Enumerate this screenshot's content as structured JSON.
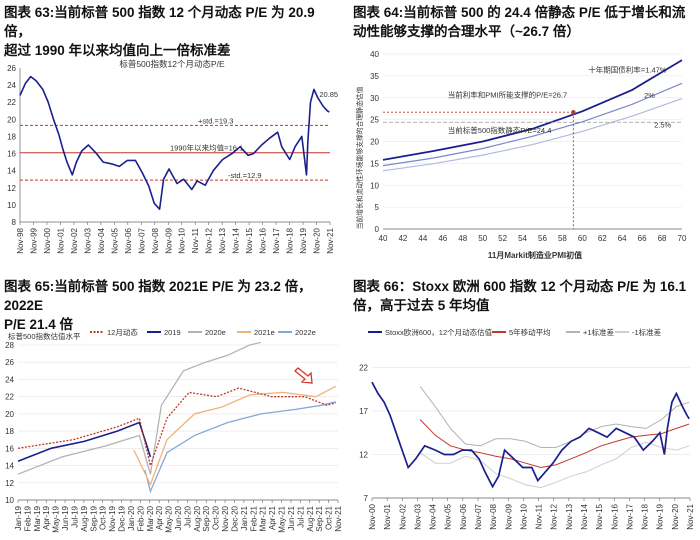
{
  "charts": [
    {
      "caption_line1": "图表 63:当前标普 500 指数 12 个月动态 P/E 为 20.9 倍，",
      "caption_line2": "超过 1990 年以来均值向上一倍标准差",
      "chart_data": {
        "type": "line",
        "title": "标普500指数12个月动态P/E",
        "ylim": [
          8,
          26
        ],
        "yticks": [
          8,
          10,
          12,
          14,
          16,
          18,
          20,
          22,
          24,
          26
        ],
        "xticks": [
          "Nov-98",
          "Nov-99",
          "Nov-00",
          "Nov-01",
          "Nov-02",
          "Nov-03",
          "Nov-04",
          "Nov-05",
          "Nov-06",
          "Nov-07",
          "Nov-08",
          "Nov-09",
          "Nov-10",
          "Nov-11",
          "Nov-12",
          "Nov-13",
          "Nov-14",
          "Nov-15",
          "Nov-16",
          "Nov-17",
          "Nov-18",
          "Nov-19",
          "Nov-20",
          "Nov-21"
        ],
        "series": [
          {
            "name": "12个月动态P/E",
            "color": "#1a1f8c",
            "x": [
              1998.8,
              1999.2,
              1999.6,
              2000.0,
              2000.5,
              2000.9,
              2001.3,
              2001.7,
              2002.0,
              2002.3,
              2002.7,
              2003.0,
              2003.4,
              2003.9,
              2004.5,
              2005.0,
              2005.6,
              2006.2,
              2006.8,
              2007.4,
              2007.9,
              2008.4,
              2008.8,
              2009.2,
              2009.5,
              2009.9,
              2010.5,
              2011.0,
              2011.6,
              2012.0,
              2012.6,
              2013.2,
              2013.9,
              2014.6,
              2015.2,
              2015.8,
              2016.2,
              2016.8,
              2017.4,
              2018.0,
              2018.3,
              2018.9,
              2019.3,
              2019.8,
              2020.15,
              2020.25,
              2020.45,
              2020.7,
              2021.0,
              2021.4,
              2021.7,
              2021.85
            ],
            "values": [
              22.8,
              24.2,
              25.0,
              24.5,
              23.5,
              22.0,
              20.0,
              18.2,
              16.5,
              15.0,
              13.5,
              15.0,
              16.3,
              17.0,
              16.0,
              15.0,
              14.8,
              14.5,
              15.2,
              15.2,
              13.8,
              12.2,
              10.2,
              9.5,
              13.0,
              14.2,
              12.5,
              13.0,
              11.8,
              12.8,
              12.3,
              14.0,
              15.3,
              16.0,
              16.8,
              15.8,
              16.0,
              17.0,
              17.8,
              18.5,
              16.8,
              15.3,
              16.8,
              18.0,
              13.5,
              17.5,
              22.0,
              23.5,
              22.5,
              21.5,
              21.0,
              20.85
            ]
          }
        ],
        "hlines": [
          {
            "value": 19.3,
            "label": "+std.=19.3",
            "color": "#c0392b",
            "dashed": true
          },
          {
            "value": 16.1,
            "label": "1990年以来均值=16.1",
            "color": "#c0392b",
            "dashed": false
          },
          {
            "value": 12.9,
            "label": "-std.=12.9",
            "color": "#c0392b",
            "dashed": true
          }
        ],
        "annotation": "20.85"
      }
    },
    {
      "caption_line1": "图表 64:当前标普 500 的 24.4 倍静态 P/E 低于增长和流",
      "caption_line2": "动性能够支撑的合理水平（~26.7 倍）",
      "chart_data": {
        "type": "line",
        "xlabel": "11月Markit制造业PMI初值",
        "ylabel": "当前增长和流动性环境能够支撑的合理静态估值",
        "xlim": [
          40,
          70
        ],
        "ylim": [
          0,
          40
        ],
        "xticks": [
          40,
          42,
          44,
          46,
          48,
          50,
          52,
          54,
          56,
          58,
          60,
          62,
          64,
          66,
          68,
          70
        ],
        "yticks": [
          0,
          5,
          10,
          15,
          20,
          25,
          30,
          35,
          40
        ],
        "series": [
          {
            "name": "十年期国债利率=1.47%",
            "color": "#1a1f8c",
            "x": [
              40,
              45,
              50,
              55,
              60,
              65,
              70
            ],
            "values": [
              15.8,
              17.8,
              20.0,
              22.9,
              26.9,
              31.8,
              38.6
            ]
          },
          {
            "name": "2%",
            "color": "#7d87c9",
            "x": [
              40,
              45,
              50,
              55,
              60,
              65,
              70
            ],
            "values": [
              14.5,
              16.2,
              18.4,
              21.2,
              24.5,
              28.5,
              33.3
            ]
          },
          {
            "name": "2.5%",
            "color": "#b2b9df",
            "x": [
              40,
              45,
              50,
              55,
              60,
              65,
              70
            ],
            "values": [
              13.3,
              14.9,
              16.9,
              19.3,
              22.3,
              25.8,
              29.8
            ]
          }
        ],
        "labels": {
          "pmi_line": "当前利率和PMI所能支撑的P/E=26.7",
          "current_line": "当前标普500指数静态P/E=24.4",
          "rate1": "十年期国债利率=1.47%",
          "rate2": "2%",
          "rate3": "2.5%"
        },
        "pmi_x": 59.1,
        "supported_pe": 26.7,
        "current_pe": 24.4
      }
    },
    {
      "caption_line1": "图表 65:当前标普 500 指数 2021E P/E 为  23.2 倍，2022E",
      "caption_line2": "P/E 21.4 倍",
      "chart_data": {
        "type": "line",
        "title": "标普500指数估值水平",
        "ylim": [
          10,
          28
        ],
        "yticks": [
          10,
          12,
          14,
          16,
          18,
          20,
          22,
          24,
          26,
          28
        ],
        "xticks": [
          "Jan-19",
          "Feb-19",
          "Mar-19",
          "Apr-19",
          "May-19",
          "Jun-19",
          "Jul-19",
          "Aug-19",
          "Sep-19",
          "Oct-19",
          "Nov-19",
          "Dec-19",
          "Jan-20",
          "Feb-20",
          "Mar-20",
          "Apr-20",
          "May-20",
          "Jun-20",
          "Jul-20",
          "Aug-20",
          "Sep-20",
          "Oct-20",
          "Nov-20",
          "Dec-20",
          "Jan-21",
          "Feb-21",
          "Mar-21",
          "Apr-21",
          "May-21",
          "Jun-21",
          "Jul-21",
          "Aug-21",
          "Sep-21",
          "Oct-21",
          "Nov-21"
        ],
        "series": [
          {
            "name": "12月动态",
            "color": "#c0392b",
            "dashed": true,
            "x": [
              2019.0,
              2019.5,
              2019.9,
              2020.1,
              2020.2,
              2020.35,
              2020.55,
              2020.8,
              2021.0,
              2021.3,
              2021.6,
              2021.8,
              2021.88
            ],
            "values": [
              16.0,
              17.0,
              18.5,
              19.5,
              14.0,
              19.5,
              22.5,
              22.0,
              23.0,
              22.0,
              22.0,
              21.0,
              21.3
            ]
          },
          {
            "name": "2019",
            "color": "#1a1f8c",
            "x": [
              2019.0,
              2019.3,
              2019.6,
              2019.9,
              2020.1,
              2020.2
            ],
            "values": [
              14.5,
              16.0,
              16.8,
              18.0,
              19.0,
              15.0
            ]
          },
          {
            "name": "2020e",
            "color": "#b3b3b3",
            "x": [
              2019.0,
              2019.4,
              2019.8,
              2020.1,
              2020.2,
              2020.3,
              2020.5,
              2020.7,
              2020.9,
              2021.1,
              2021.2
            ],
            "values": [
              13.0,
              15.0,
              16.3,
              17.5,
              13.0,
              21.0,
              25.0,
              26.0,
              26.8,
              28.0,
              28.3
            ]
          },
          {
            "name": "2021e",
            "color": "#f0b27a",
            "x": [
              2020.05,
              2020.2,
              2020.35,
              2020.6,
              2020.85,
              2021.1,
              2021.4,
              2021.7,
              2021.88
            ],
            "values": [
              15.8,
              11.8,
              17.0,
              20.0,
              20.8,
              22.2,
              22.5,
              22.0,
              23.2
            ]
          },
          {
            "name": "2022e",
            "color": "#85a9d6",
            "x": [
              2020.15,
              2020.2,
              2020.35,
              2020.6,
              2020.9,
              2021.2,
              2021.5,
              2021.75,
              2021.88
            ],
            "values": [
              13.5,
              11.0,
              15.5,
              17.5,
              19.0,
              20.0,
              20.5,
              21.0,
              21.4
            ]
          }
        ]
      }
    },
    {
      "caption_line1": "图表 66：Stoxx 欧洲 600 指数 12 个月动态 P/E 为 16.1",
      "caption_line2": "倍，高于过去 5 年均值",
      "chart_data": {
        "type": "line",
        "ylim": [
          7,
          24
        ],
        "yticks": [
          7,
          12,
          17,
          22
        ],
        "xticks": [
          "Nov-00",
          "Nov-01",
          "Nov-02",
          "Nov-03",
          "Nov-04",
          "Nov-05",
          "Nov-06",
          "Nov-07",
          "Nov-08",
          "Nov-09",
          "Nov-10",
          "Nov-11",
          "Nov-12",
          "Nov-13",
          "Nov-14",
          "Nov-15",
          "Nov-16",
          "Nov-17",
          "Nov-18",
          "Nov-19",
          "Nov-20",
          "Nov-21"
        ],
        "series": [
          {
            "name": "Stoxx欧洲600，12个月动态估值",
            "color": "#1a1f8c",
            "x": [
              2000.8,
              2001.2,
              2001.6,
              2002.0,
              2002.4,
              2002.8,
              2003.2,
              2003.7,
              2004.3,
              2005.0,
              2005.6,
              2006.2,
              2006.8,
              2007.4,
              2007.9,
              2008.3,
              2008.8,
              2009.2,
              2009.6,
              2010.2,
              2010.8,
              2011.4,
              2011.8,
              2012.3,
              2012.8,
              2013.4,
              2014.0,
              2014.6,
              2015.2,
              2015.8,
              2016.4,
              2017.0,
              2017.6,
              2018.2,
              2018.8,
              2019.4,
              2019.9,
              2020.2,
              2020.4,
              2020.7,
              2021.0,
              2021.4,
              2021.7,
              2021.85
            ],
            "values": [
              20.3,
              19.0,
              18.0,
              16.5,
              14.5,
              12.5,
              10.5,
              11.5,
              13.0,
              12.5,
              12.0,
              12.0,
              12.5,
              12.5,
              11.5,
              10.0,
              8.3,
              9.5,
              12.5,
              11.5,
              10.5,
              10.5,
              9.0,
              10.0,
              11.0,
              12.5,
              13.5,
              14.0,
              15.0,
              14.5,
              14.0,
              15.0,
              14.5,
              14.0,
              12.5,
              13.5,
              14.5,
              12.0,
              15.0,
              18.0,
              19.0,
              17.5,
              16.5,
              16.1
            ]
          },
          {
            "name": "5年移动平均",
            "color": "#c0392b",
            "x": [
              2004.0,
              2005.0,
              2006.0,
              2007.0,
              2008.0,
              2009.0,
              2010.0,
              2011.0,
              2012.0,
              2013.0,
              2014.0,
              2015.0,
              2016.0,
              2017.0,
              2018.0,
              2019.0,
              2020.0,
              2021.0,
              2021.85
            ],
            "values": [
              16.0,
              14.2,
              13.0,
              12.5,
              12.2,
              11.8,
              11.5,
              11.0,
              10.5,
              10.8,
              11.5,
              12.2,
              13.0,
              13.5,
              14.0,
              14.2,
              14.4,
              15.0,
              15.5
            ]
          },
          {
            "name": "+1标准差",
            "color": "#b3b3b3",
            "x": [
              2004.0,
              2005.0,
              2006.0,
              2007.0,
              2008.0,
              2009.0,
              2010.0,
              2011.0,
              2012.0,
              2013.0,
              2014.0,
              2015.0,
              2016.0,
              2017.0,
              2018.0,
              2019.0,
              2020.0,
              2021.0,
              2021.85
            ],
            "values": [
              19.8,
              17.5,
              15.0,
              13.2,
              13.0,
              13.8,
              13.8,
              13.5,
              12.8,
              12.8,
              13.5,
              14.5,
              15.2,
              15.5,
              15.2,
              15.0,
              16.0,
              17.5,
              18.0
            ]
          },
          {
            "name": "-1标准差",
            "color": "#cfcfcf",
            "x": [
              2004.0,
              2005.0,
              2006.0,
              2007.0,
              2008.0,
              2009.0,
              2010.0,
              2011.0,
              2012.0,
              2013.0,
              2014.0,
              2015.0,
              2016.0,
              2017.0,
              2018.0,
              2019.0,
              2020.0,
              2021.0,
              2021.85
            ],
            "values": [
              12.2,
              11.0,
              11.0,
              11.8,
              11.3,
              9.8,
              9.2,
              8.5,
              8.2,
              8.8,
              9.5,
              10.0,
              10.8,
              11.5,
              12.8,
              13.4,
              12.8,
              12.5,
              13.0
            ]
          }
        ]
      }
    }
  ]
}
